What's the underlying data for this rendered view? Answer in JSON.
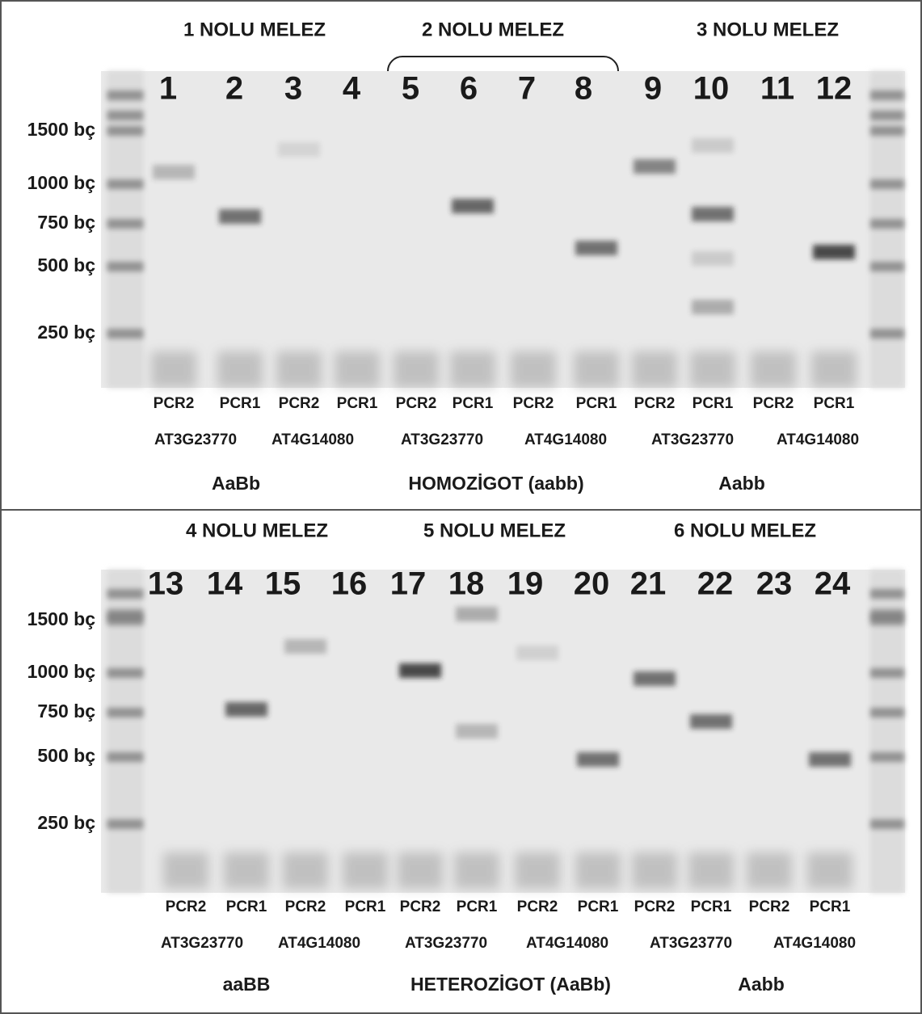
{
  "panels": [
    {
      "groups": [
        "1 NOLU MELEZ",
        "2 NOLU MELEZ",
        "3 NOLU MELEZ"
      ],
      "lanes": [
        "1",
        "2",
        "3",
        "4",
        "5",
        "6",
        "7",
        "8",
        "9",
        "10",
        "11",
        "12"
      ],
      "ladder": [
        "1500 bç",
        "1000 bç",
        "750 bç",
        "500 bç",
        "250 bç"
      ],
      "primers": [
        "PCR2",
        "PCR1",
        "PCR2",
        "PCR1",
        "PCR2",
        "PCR1",
        "PCR2",
        "PCR1",
        "PCR2",
        "PCR1",
        "PCR2",
        "PCR1"
      ],
      "genes": [
        "AT3G23770",
        "AT4G14080",
        "AT3G23770",
        "AT4G14080",
        "AT3G23770",
        "AT4G14080"
      ],
      "genotypes": [
        "AaBb",
        "HOMOZİGOT (aabb)",
        "Aabb"
      ]
    },
    {
      "groups": [
        "4 NOLU MELEZ",
        "5 NOLU MELEZ",
        "6 NOLU MELEZ"
      ],
      "lanes": [
        "13",
        "14",
        "15",
        "16",
        "17",
        "18",
        "19",
        "20",
        "21",
        "22",
        "23",
        "24"
      ],
      "ladder": [
        "1500 bç",
        "1000 bç",
        "750 bç",
        "500 bç",
        "250 bç"
      ],
      "primers": [
        "PCR2",
        "PCR1",
        "PCR2",
        "PCR1",
        "PCR2",
        "PCR1",
        "PCR2",
        "PCR1",
        "PCR2",
        "PCR1",
        "PCR2",
        "PCR1"
      ],
      "genes": [
        "AT3G23770",
        "AT4G14080",
        "AT3G23770",
        "AT4G14080",
        "AT3G23770",
        "AT4G14080"
      ],
      "genotypes": [
        "aaBB",
        "HETEROZİGOT (AaBb)",
        "Aabb"
      ]
    }
  ]
}
